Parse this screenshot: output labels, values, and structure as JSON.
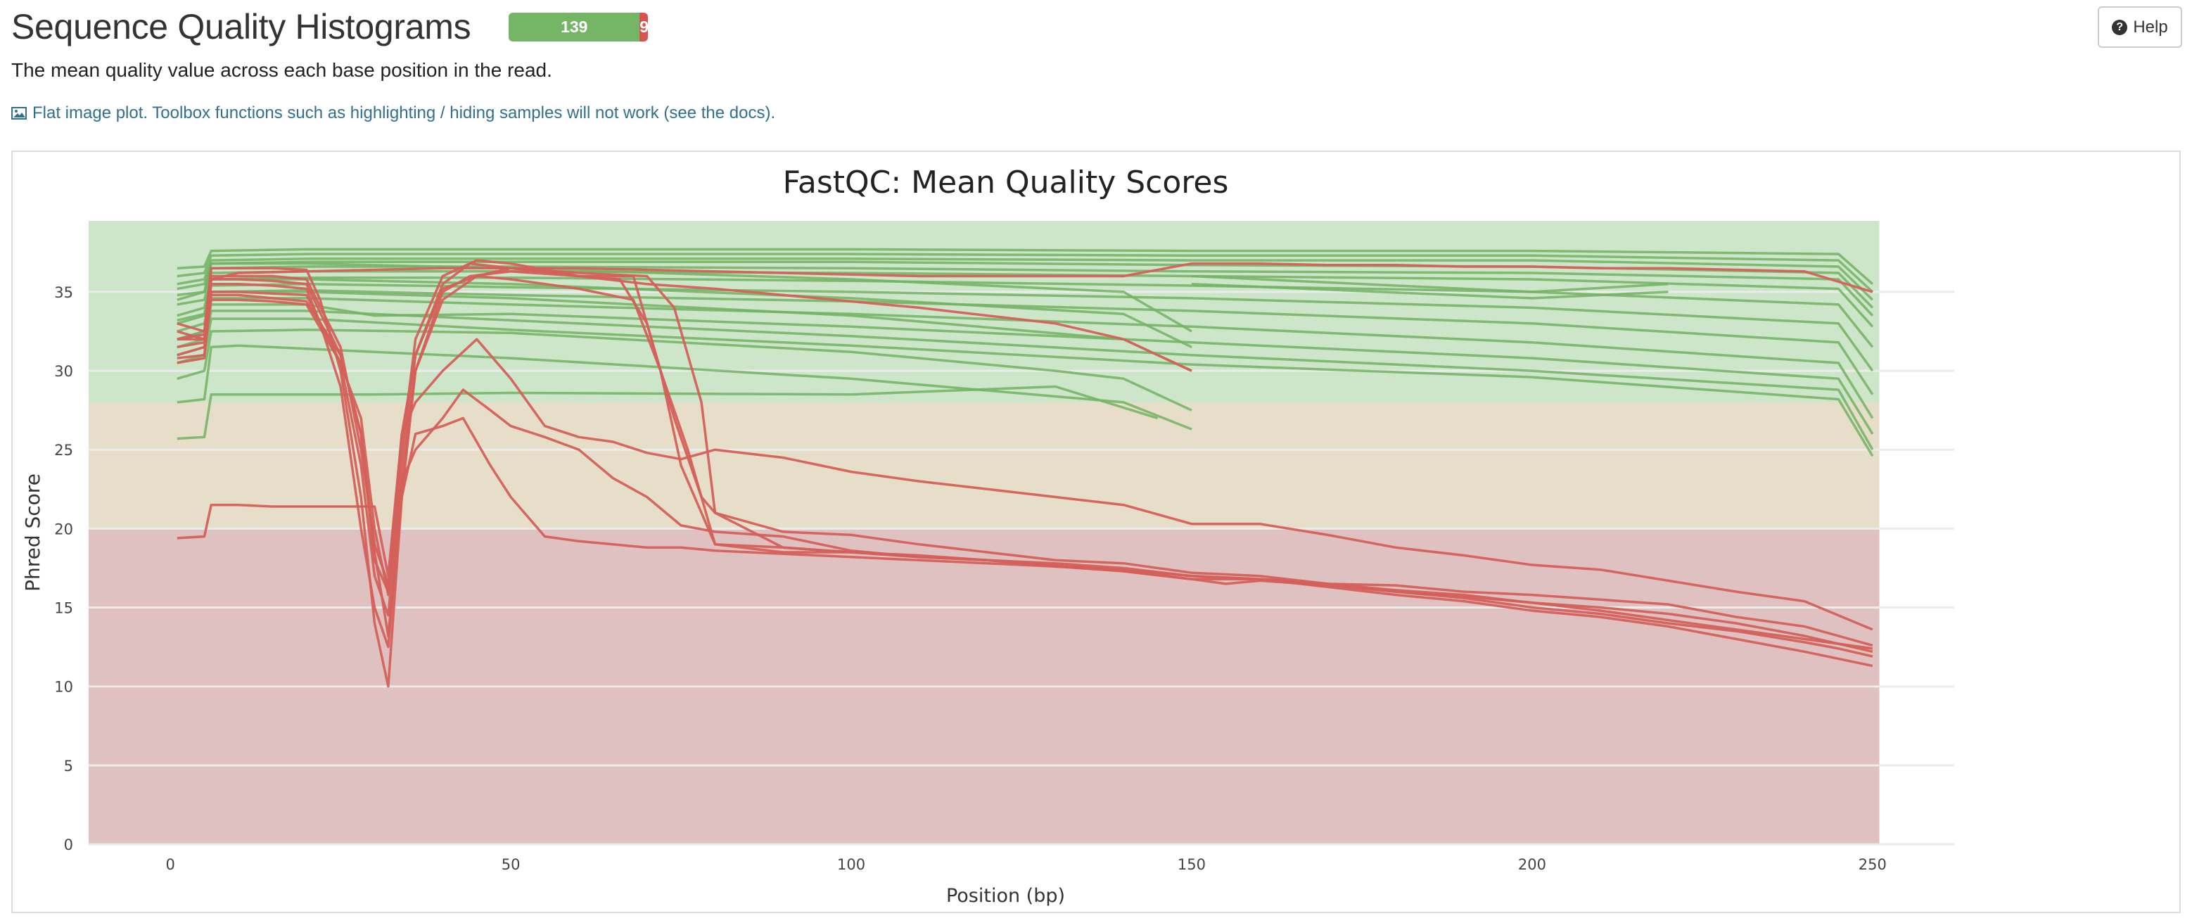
{
  "header": {
    "title": "Sequence Quality Histograms",
    "status_pass_count": "139",
    "status_fail_count": "9",
    "status_pass_fraction": 0.939,
    "help_label": "Help"
  },
  "description": "The mean quality value across each base position in the read.",
  "flat_note": {
    "text_prefix": "Flat image plot. Toolbox functions such as highlighting / hiding samples will not work (",
    "link_text": "see the docs",
    "text_suffix": ")."
  },
  "colors": {
    "pass_line": "#72b363",
    "fail_line": "#d4605a",
    "zone_good": "#cde5c8",
    "zone_warn": "#e6dec9",
    "zone_fail": "#e0c1c2",
    "status_pass": "#74b566",
    "status_fail": "#d9534f"
  },
  "chart_data": {
    "type": "line",
    "title": "FastQC: Mean Quality Scores",
    "xlabel": "Position (bp)",
    "ylabel": "Phred Score",
    "xlim": [
      -12,
      262
    ],
    "ylim": [
      0,
      39.5
    ],
    "xticks": [
      0,
      50,
      100,
      150,
      200,
      250
    ],
    "yticks": [
      0,
      5,
      10,
      15,
      20,
      25,
      30,
      35
    ],
    "grid": true,
    "background_zones": [
      {
        "from": 28,
        "to": 39.5,
        "color": "#cde5c8",
        "xmax": 251
      },
      {
        "from": 20,
        "to": 28,
        "color": "#e6dec9",
        "xmax": 251
      },
      {
        "from": 0,
        "to": 20,
        "color": "#e0c1c2",
        "xmax": 251
      }
    ],
    "series": [
      {
        "status": "fail",
        "x": [
          1,
          5,
          6,
          10,
          15,
          20,
          22,
          25,
          28,
          30,
          32,
          34,
          36,
          40,
          45,
          50,
          60,
          70,
          80,
          90,
          100,
          110,
          120,
          130,
          140,
          150
        ],
        "y": [
          33.0,
          32.5,
          36.5,
          36.5,
          36.5,
          36.4,
          34.5,
          30.0,
          22.0,
          14.0,
          10.0,
          22.0,
          30.0,
          34.5,
          36.0,
          36.5,
          36.0,
          35.5,
          35.2,
          34.8,
          34.4,
          34.0,
          33.5,
          33.0,
          32.0,
          30.0
        ]
      },
      {
        "status": "fail",
        "x": [
          1,
          5,
          6,
          10,
          15,
          20,
          22,
          25,
          28,
          30,
          32,
          34,
          36,
          40,
          44,
          50,
          60,
          68,
          72,
          75,
          80,
          90,
          100,
          110,
          120,
          130,
          140,
          150,
          160,
          170,
          180,
          190,
          200,
          210,
          220,
          230,
          240,
          245,
          250
        ],
        "y": [
          31.0,
          31.5,
          35.5,
          35.5,
          35.4,
          35.2,
          33.0,
          29.0,
          20.0,
          15.0,
          12.5,
          23.0,
          30.0,
          35.0,
          36.0,
          36.3,
          36.0,
          36.0,
          30.0,
          24.0,
          19.0,
          18.5,
          18.5,
          18.2,
          18.0,
          17.6,
          17.4,
          17.0,
          16.8,
          16.5,
          16.0,
          15.6,
          15.0,
          14.6,
          14.0,
          13.5,
          12.8,
          12.4,
          11.9
        ]
      },
      {
        "status": "fail",
        "x": [
          1,
          5,
          6,
          10,
          15,
          20,
          25,
          28,
          30,
          32,
          34,
          36,
          40,
          44,
          50,
          60,
          70,
          74,
          78,
          80,
          90,
          100,
          110,
          120,
          130,
          140,
          150,
          160,
          170,
          180,
          190,
          200,
          210,
          220,
          230,
          240,
          250
        ],
        "y": [
          32.0,
          32.3,
          35.0,
          35.0,
          34.9,
          34.8,
          30.5,
          24.0,
          17.0,
          14.5,
          24.0,
          31.0,
          35.5,
          36.8,
          36.5,
          36.2,
          36.0,
          34.0,
          28.0,
          21.0,
          18.8,
          18.5,
          18.3,
          18.0,
          17.8,
          17.5,
          17.0,
          16.8,
          16.3,
          15.8,
          15.4,
          14.8,
          14.4,
          13.8,
          13.0,
          12.2,
          11.3
        ]
      },
      {
        "status": "fail",
        "x": [
          1,
          5,
          6,
          10,
          15,
          20,
          25,
          28,
          30,
          32,
          34,
          36,
          40,
          45,
          50,
          55,
          60,
          66,
          70,
          74,
          78,
          80,
          90,
          100,
          110,
          120,
          130,
          140,
          150,
          160,
          170,
          180,
          190,
          200,
          210,
          220,
          230,
          240,
          250
        ],
        "y": [
          30.5,
          30.8,
          36.0,
          36.0,
          36.0,
          35.8,
          31.5,
          25.0,
          19.0,
          16.5,
          25.0,
          32.0,
          36.0,
          37.0,
          36.8,
          36.4,
          36.0,
          35.8,
          33.0,
          27.0,
          22.0,
          21.0,
          19.8,
          19.6,
          19.0,
          18.5,
          18.0,
          17.8,
          17.2,
          17.0,
          16.5,
          16.1,
          15.8,
          15.3,
          15.0,
          14.6,
          14.0,
          13.2,
          12.2
        ]
      },
      {
        "status": "fail",
        "x": [
          1,
          5,
          6,
          10,
          15,
          20,
          25,
          28,
          30,
          32,
          34,
          36,
          40,
          45,
          50,
          55,
          60,
          68,
          72,
          76,
          80,
          90,
          100,
          110,
          120,
          130,
          140,
          150,
          160,
          170,
          180,
          190,
          200,
          210,
          220,
          230,
          240,
          250
        ],
        "y": [
          32.5,
          32.0,
          35.8,
          35.8,
          35.7,
          35.5,
          31.0,
          26.0,
          18.0,
          16.0,
          26.0,
          31.0,
          35.2,
          36.0,
          35.8,
          35.5,
          35.2,
          34.5,
          30.0,
          25.0,
          19.0,
          18.8,
          18.5,
          18.2,
          18.0,
          17.7,
          17.3,
          16.8,
          16.8,
          16.5,
          16.4,
          16.0,
          15.8,
          15.5,
          15.2,
          14.4,
          13.8,
          12.6
        ]
      },
      {
        "status": "fail",
        "x": [
          1,
          5,
          6,
          10,
          15,
          20,
          25,
          28,
          30,
          32,
          34,
          36,
          40,
          45,
          50,
          55,
          60,
          65,
          70,
          75,
          80,
          90,
          100,
          110,
          120,
          130,
          140,
          150,
          160,
          170,
          180,
          190,
          200,
          210,
          220,
          230,
          240,
          250
        ],
        "y": [
          19.4,
          19.5,
          21.5,
          21.5,
          21.4,
          21.4,
          21.4,
          21.4,
          21.4,
          17.0,
          26.0,
          28.0,
          30.0,
          32.0,
          29.5,
          26.5,
          25.8,
          25.5,
          24.8,
          24.4,
          25.0,
          24.5,
          23.6,
          23.0,
          22.5,
          22.0,
          21.5,
          20.3,
          20.3,
          19.6,
          18.8,
          18.3,
          17.7,
          17.4,
          16.7,
          16.0,
          15.4,
          13.6
        ]
      },
      {
        "status": "fail",
        "x": [
          1,
          5,
          6,
          10,
          15,
          20,
          25,
          28,
          30,
          32,
          34,
          36,
          40,
          43,
          47,
          50,
          55,
          60,
          65,
          70,
          75,
          80,
          90,
          100,
          110,
          120,
          130,
          140,
          150,
          155,
          160,
          170,
          180,
          190,
          200,
          210,
          220,
          230,
          240,
          250
        ],
        "y": [
          31.5,
          31.8,
          34.5,
          34.5,
          34.4,
          34.2,
          30.5,
          27.0,
          20.0,
          15.8,
          23.0,
          25.0,
          27.0,
          28.8,
          27.5,
          26.5,
          25.8,
          25.0,
          23.2,
          22.0,
          20.2,
          19.8,
          19.5,
          18.6,
          18.2,
          18.0,
          17.6,
          17.3,
          16.8,
          16.5,
          16.7,
          16.4,
          16.0,
          15.7,
          15.3,
          14.8,
          14.2,
          13.6,
          13.0,
          12.4
        ]
      },
      {
        "status": "fail",
        "x": [
          1,
          5,
          6,
          10,
          15,
          20,
          25,
          28,
          30,
          32,
          34,
          36,
          40,
          43,
          47,
          50,
          55,
          60,
          65,
          70,
          75,
          80,
          90,
          100,
          110,
          120,
          130,
          140,
          150
        ],
        "y": [
          30.8,
          31.0,
          34.8,
          34.8,
          34.6,
          34.4,
          31.0,
          26.0,
          18.5,
          13.2,
          22.0,
          26.0,
          26.5,
          27.0,
          24.0,
          22.0,
          19.5,
          19.2,
          19.0,
          18.8,
          18.8,
          18.6,
          18.4,
          18.2,
          18.0,
          17.8,
          17.6,
          17.4,
          17.0
        ]
      },
      {
        "status": "fail",
        "x": [
          1,
          5,
          6,
          10,
          20,
          30,
          40,
          50,
          60,
          70,
          80,
          90,
          100,
          110,
          120,
          130,
          140,
          150,
          160,
          170,
          180,
          190,
          200,
          210,
          220,
          230,
          240,
          250
        ],
        "y": [
          32.0,
          32.0,
          35.8,
          36.2,
          36.3,
          36.4,
          36.5,
          36.5,
          36.5,
          36.4,
          36.3,
          36.2,
          36.1,
          36.0,
          36.0,
          36.0,
          36.0,
          36.8,
          36.8,
          36.7,
          36.7,
          36.6,
          36.6,
          36.5,
          36.5,
          36.4,
          36.3,
          35.0
        ]
      },
      {
        "status": "pass",
        "x": [
          1,
          5,
          6,
          20,
          50,
          100,
          150,
          200,
          245,
          250
        ],
        "y": [
          36.5,
          36.6,
          37.6,
          37.7,
          37.7,
          37.7,
          37.6,
          37.6,
          37.4,
          35.5
        ]
      },
      {
        "status": "pass",
        "x": [
          1,
          5,
          6,
          20,
          50,
          100,
          150,
          200,
          245,
          250
        ],
        "y": [
          36.0,
          36.2,
          37.3,
          37.4,
          37.4,
          37.4,
          37.3,
          37.3,
          37.0,
          35.0
        ]
      },
      {
        "status": "pass",
        "x": [
          1,
          5,
          6,
          20,
          50,
          100,
          150,
          200,
          245,
          250
        ],
        "y": [
          35.5,
          35.8,
          37.0,
          37.1,
          37.1,
          37.1,
          37.0,
          37.0,
          36.6,
          34.5
        ]
      },
      {
        "status": "pass",
        "x": [
          1,
          5,
          6,
          20,
          50,
          100,
          150,
          200,
          245,
          250
        ],
        "y": [
          35.2,
          35.5,
          36.8,
          36.9,
          36.9,
          36.9,
          36.7,
          36.6,
          36.2,
          34.0
        ]
      },
      {
        "status": "pass",
        "x": [
          1,
          5,
          6,
          20,
          50,
          100,
          150,
          200,
          245,
          250
        ],
        "y": [
          34.8,
          35.0,
          36.5,
          36.6,
          36.6,
          36.5,
          36.3,
          36.2,
          35.8,
          33.5
        ]
      },
      {
        "status": "pass",
        "x": [
          1,
          5,
          6,
          20,
          50,
          100,
          150,
          200,
          245,
          250
        ],
        "y": [
          34.2,
          34.5,
          36.2,
          36.3,
          36.3,
          36.2,
          36.0,
          35.8,
          35.2,
          32.8
        ]
      },
      {
        "status": "pass",
        "x": [
          1,
          5,
          6,
          20,
          50,
          100,
          150,
          200,
          245,
          250
        ],
        "y": [
          33.5,
          34.0,
          35.8,
          35.9,
          35.9,
          35.7,
          35.4,
          35.0,
          34.2,
          31.5
        ]
      },
      {
        "status": "pass",
        "x": [
          1,
          5,
          6,
          20,
          50,
          100,
          150,
          200,
          245,
          250
        ],
        "y": [
          33.0,
          33.5,
          35.4,
          35.5,
          35.3,
          35.0,
          34.6,
          34.0,
          33.0,
          30.0
        ]
      },
      {
        "status": "pass",
        "x": [
          1,
          5,
          6,
          20,
          50,
          100,
          150,
          200,
          245,
          250
        ],
        "y": [
          32.5,
          33.0,
          35.0,
          35.1,
          34.8,
          34.4,
          33.8,
          33.0,
          31.8,
          28.5
        ]
      },
      {
        "status": "pass",
        "x": [
          1,
          5,
          6,
          20,
          50,
          100,
          150,
          200,
          245,
          250
        ],
        "y": [
          32.0,
          32.5,
          34.6,
          34.6,
          34.2,
          33.6,
          32.8,
          31.8,
          30.5,
          27.0
        ]
      },
      {
        "status": "pass",
        "x": [
          1,
          5,
          6,
          20,
          30,
          50,
          100,
          150,
          200,
          245,
          250
        ],
        "y": [
          31.5,
          32.0,
          34.2,
          34.2,
          33.5,
          33.6,
          32.8,
          31.8,
          30.8,
          29.5,
          26.0
        ]
      },
      {
        "status": "pass",
        "x": [
          1,
          5,
          6,
          20,
          50,
          100,
          150,
          200,
          245,
          250
        ],
        "y": [
          31.0,
          31.5,
          33.8,
          33.8,
          33.2,
          32.2,
          31.0,
          30.0,
          28.8,
          25.0
        ]
      },
      {
        "status": "pass",
        "x": [
          1,
          5,
          6,
          20,
          50,
          100,
          150,
          200,
          245,
          250
        ],
        "y": [
          30.5,
          31.0,
          33.3,
          33.3,
          32.6,
          31.6,
          30.4,
          29.6,
          28.2,
          24.6
        ]
      },
      {
        "status": "pass",
        "x": [
          1,
          5,
          6,
          10,
          20,
          30,
          50,
          100,
          140,
          150
        ],
        "y": [
          28.0,
          28.2,
          31.5,
          31.6,
          31.4,
          31.2,
          30.8,
          29.5,
          28.0,
          26.3
        ]
      },
      {
        "status": "pass",
        "x": [
          1,
          5,
          6,
          10,
          20,
          30,
          50,
          100,
          130,
          145
        ],
        "y": [
          25.7,
          25.8,
          28.5,
          28.5,
          28.5,
          28.5,
          28.6,
          28.5,
          29.0,
          27.0
        ]
      },
      {
        "status": "pass",
        "x": [
          1,
          5,
          6,
          20,
          50,
          100,
          130,
          140,
          150
        ],
        "y": [
          29.5,
          30.0,
          32.5,
          32.6,
          32.4,
          31.2,
          30.0,
          29.5,
          27.5
        ]
      },
      {
        "status": "pass",
        "x": [
          1,
          5,
          6,
          20,
          50,
          100,
          140,
          150
        ],
        "y": [
          32.0,
          32.5,
          35.0,
          35.0,
          34.6,
          33.5,
          32.0,
          30.0
        ]
      },
      {
        "status": "pass",
        "x": [
          1,
          5,
          6,
          20,
          50,
          100,
          140,
          150
        ],
        "y": [
          33.2,
          33.6,
          35.8,
          35.8,
          35.5,
          34.6,
          33.6,
          31.5
        ]
      },
      {
        "status": "pass",
        "x": [
          1,
          5,
          6,
          20,
          50,
          100,
          140,
          150
        ],
        "y": [
          34.5,
          35.0,
          36.8,
          36.8,
          36.5,
          35.8,
          35.0,
          32.5
        ]
      },
      {
        "status": "pass",
        "x": [
          150,
          200,
          220
        ],
        "y": [
          36.0,
          35.0,
          35.5
        ]
      },
      {
        "status": "pass",
        "x": [
          150,
          200,
          220
        ],
        "y": [
          35.5,
          34.6,
          35.0
        ]
      }
    ]
  }
}
